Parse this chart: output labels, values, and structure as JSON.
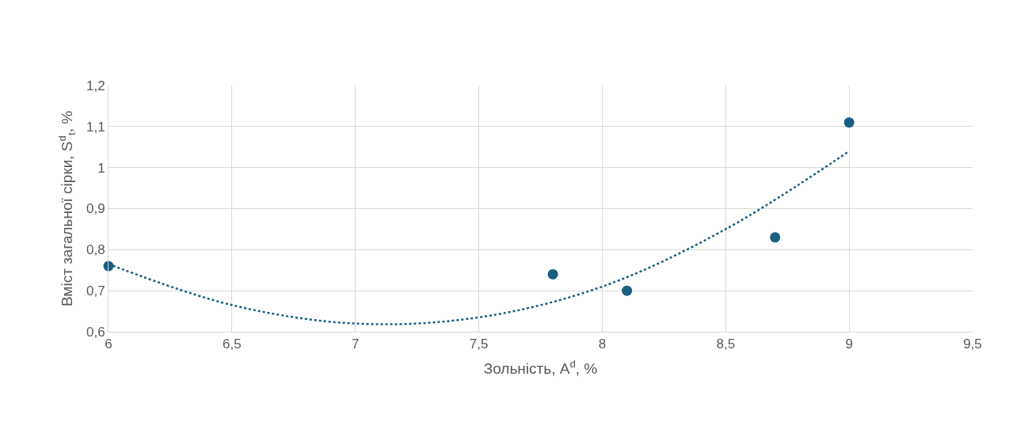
{
  "chart_data": {
    "type": "scatter",
    "xlabel": "Зольність, A$^{d}$, %",
    "ylabel": "Вміст загальної сірки, S$^{d}$$_{t}$, %",
    "series": [
      {
        "color": "#1a5e80",
        "marker": "circle",
        "x": [
          6,
          7.8,
          8.1,
          8.7,
          9
        ],
        "values": [
          0.76,
          0.74,
          0.7,
          0.83,
          1.11
        ]
      },
      {
        "type": "line",
        "color": "#1a5e80",
        "line_style": "dotted",
        "marker": "none",
        "x": [
          6,
          6.5,
          7,
          7.5,
          8,
          8.5,
          9
        ],
        "values": [
          0.765,
          0.665,
          0.62,
          0.635,
          0.71,
          0.85,
          1.04
        ]
      }
    ],
    "xlim": [
      6,
      9.5
    ],
    "xticks": [
      6,
      {
        "value": 6.5,
        "label": "6,5"
      },
      7,
      {
        "value": 7.5,
        "label": "7,5"
      },
      8,
      {
        "value": 8.5,
        "label": "8,5"
      },
      9,
      {
        "value": 9.5,
        "label": "9,5"
      }
    ],
    "ylim": [
      0.6,
      1.2
    ],
    "yticks": [
      {
        "value": 0.6,
        "label": "0,6"
      },
      {
        "value": 0.7,
        "label": "0,7"
      },
      {
        "value": 0.8,
        "label": "0,8"
      },
      {
        "value": 0.9,
        "label": "0,9"
      },
      1,
      {
        "value": 1.1,
        "label": "1,1"
      },
      {
        "value": 1.2,
        "label": "1,2"
      }
    ],
    "grid": true
  }
}
